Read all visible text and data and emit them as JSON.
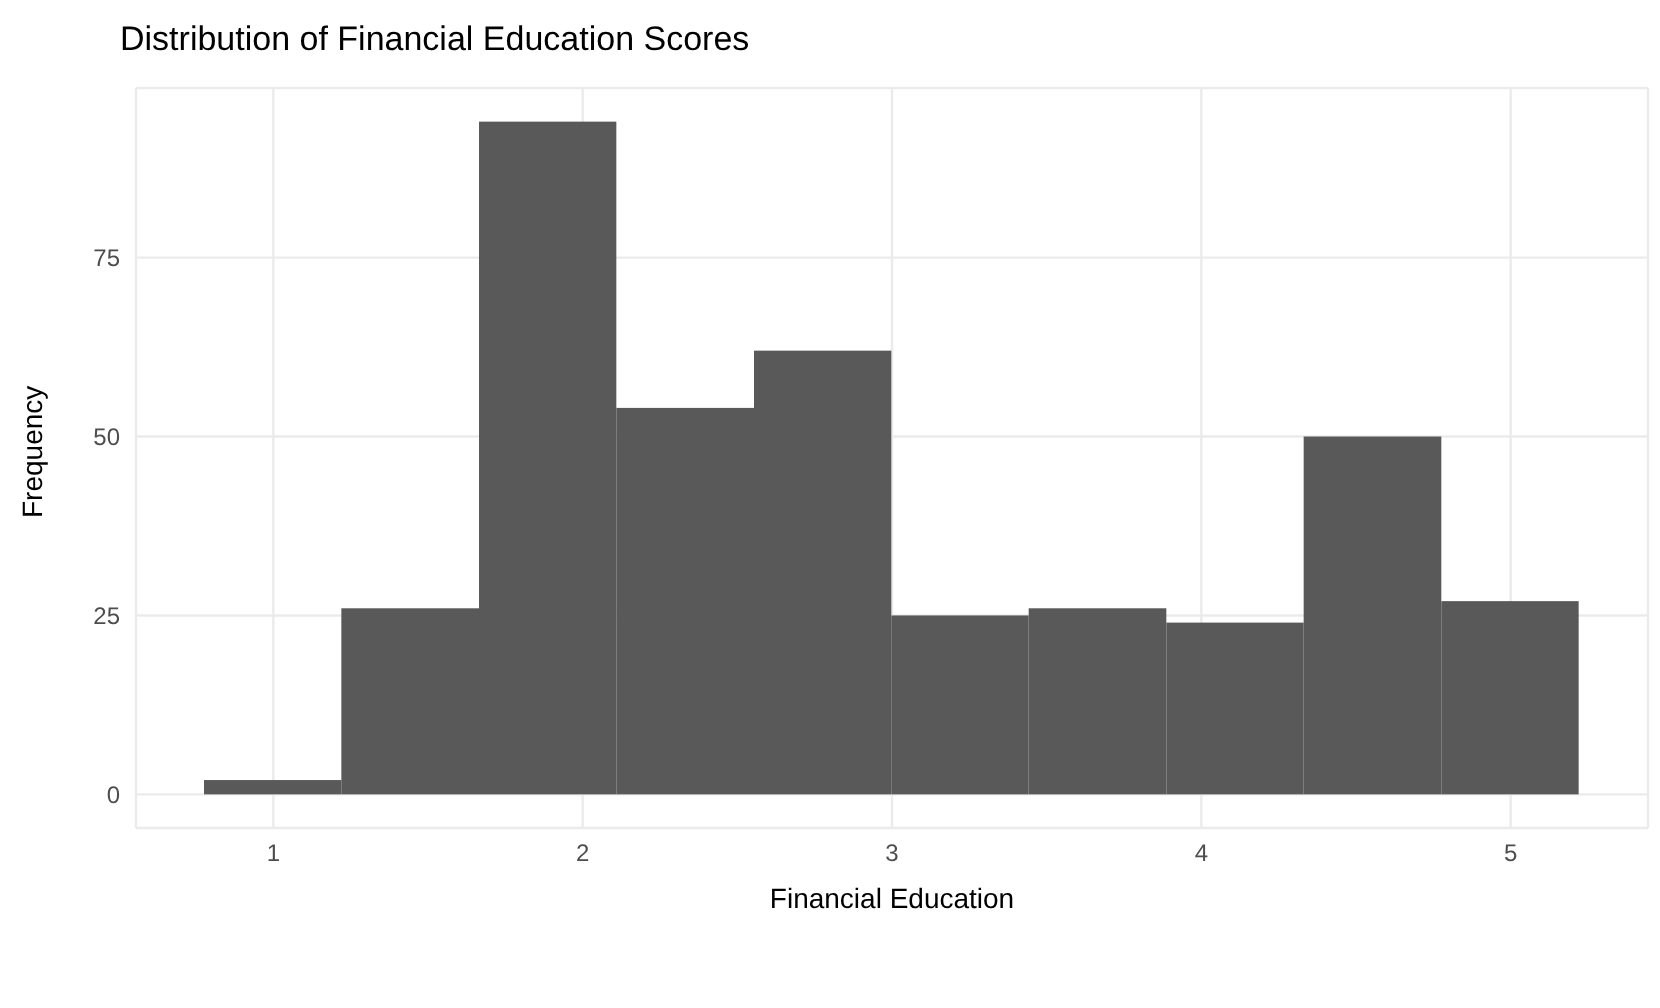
{
  "chart_data": {
    "type": "histogram",
    "title": "Distribution of Financial Education Scores",
    "xlabel": "Financial Education",
    "ylabel": "Frequency",
    "bins": [
      0.778,
      1.222,
      1.667,
      2.111,
      2.556,
      3,
      3.444,
      3.889,
      4.333,
      4.778,
      5.222
    ],
    "values": [
      2,
      26,
      94,
      54,
      62,
      25,
      26,
      24,
      50,
      27
    ],
    "color": "#595959",
    "xlim": [
      0.556,
      5.444
    ],
    "xticks": [
      1,
      2,
      3,
      4,
      5
    ],
    "ylim": [
      -4.7,
      98.7
    ],
    "yticks": [
      0,
      25,
      50,
      75
    ],
    "grid": true
  }
}
